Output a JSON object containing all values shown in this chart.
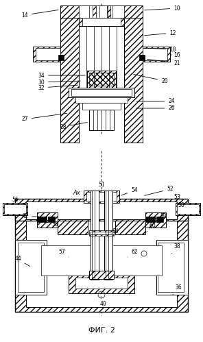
{
  "title": "ФИГ. 2",
  "title_fontsize": 8,
  "bg_color": "#ffffff",
  "fig_width": 2.96,
  "fig_height": 4.99,
  "dpi": 100
}
